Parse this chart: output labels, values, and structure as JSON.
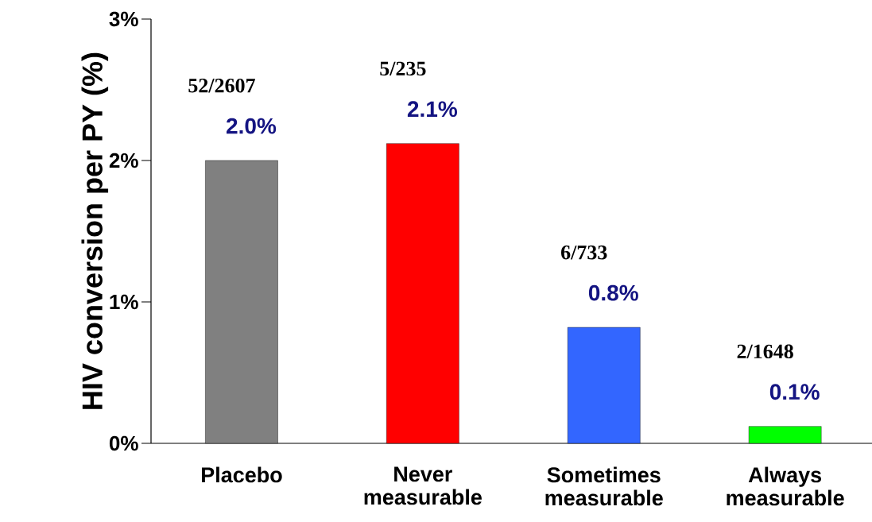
{
  "chart_data": {
    "type": "bar",
    "ylabel": "HIV conversion per PY (%)",
    "categories": [
      "Placebo",
      "Never measurable",
      "Sometimes measurable",
      "Always measurable"
    ],
    "values": [
      2.0,
      2.12,
      0.82,
      0.12
    ],
    "colors": [
      "#808080",
      "#ff0000",
      "#3366ff",
      "#00ff00"
    ],
    "value_labels": [
      "2.0%",
      "2.1%",
      "0.8%",
      "0.1%"
    ],
    "ylim": [
      0,
      3
    ],
    "yticks": [
      {
        "value": 0,
        "label": "0%"
      },
      {
        "value": 1,
        "label": "1%"
      },
      {
        "value": 2,
        "label": "2%"
      },
      {
        "value": 3,
        "label": "3%"
      }
    ],
    "annotations": [
      "52/2607",
      "5/235",
      "6/733",
      "2/1648"
    ],
    "grid": false
  }
}
